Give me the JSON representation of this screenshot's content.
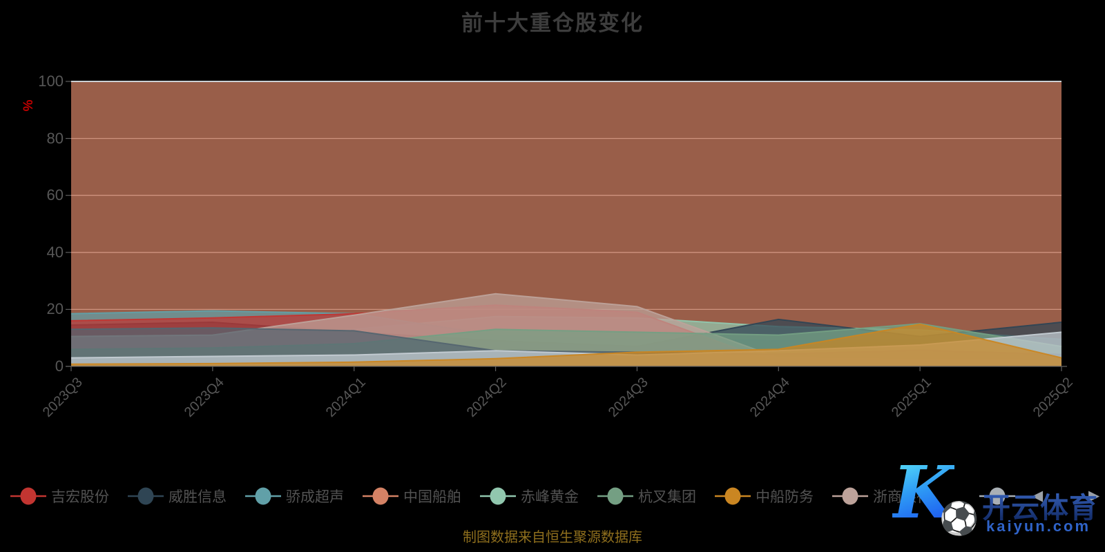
{
  "title": "前十大重仓股变化",
  "y_axis": {
    "name": "%",
    "labels": [
      "0",
      "20",
      "40",
      "60",
      "80",
      "100"
    ]
  },
  "x_axis": {
    "labels": [
      "2023Q3",
      "2023Q4",
      "2024Q1",
      "2024Q2",
      "2024Q3",
      "2024Q4",
      "2025Q1",
      "2025Q2"
    ]
  },
  "legend": {
    "items": [
      {
        "name": "吉宏股份",
        "color": "#c23531"
      },
      {
        "name": "威胜信息",
        "color": "#2f4554"
      },
      {
        "name": "骄成超声",
        "color": "#61a0a8"
      },
      {
        "name": "中国船舶",
        "color": "#d48265"
      },
      {
        "name": "赤峰黄金",
        "color": "#91c7ae"
      },
      {
        "name": "杭叉集团",
        "color": "#749f83"
      },
      {
        "name": "中船防务",
        "color": "#ca8622"
      },
      {
        "name": "浙商银行",
        "color": "#bda29a"
      },
      {
        "name": "",
        "color": "#a9afb5"
      }
    ],
    "prev_arrow": "◀",
    "next_arrow": "▶"
  },
  "footer": "制图数据来自恒生聚源数据库",
  "watermark": {
    "letter": "K",
    "ball": "⚽",
    "brand": "开云体育",
    "domain": "kaiyun.com"
  },
  "colors": {
    "background": "#000000",
    "title_text": "#3d3d3d",
    "axis_label": "#575757",
    "axis_line": "#5f5f5f",
    "gridline": "#e0e0e0",
    "top_boundary_line": "#ccd0d4",
    "percent_label": "#c40000",
    "footer_text": "#8f6f1d"
  },
  "chart_data": {
    "type": "area",
    "stacked": false,
    "unit": "%",
    "title": "前十大重仓股变化",
    "categories": [
      "2023Q3",
      "2023Q4",
      "2024Q1",
      "2024Q2",
      "2024Q3",
      "2024Q4",
      "2025Q1",
      "2025Q2"
    ],
    "ylim": [
      0,
      100
    ],
    "gridlines": [
      20,
      40,
      60,
      80,
      100
    ],
    "legend_position": "bottom",
    "fill_opacity": 0.72,
    "series": [
      {
        "name": "吉宏股份",
        "color": "#c23531",
        "values": [
          16,
          17,
          18.5,
          21.5,
          19,
          1,
          1,
          1
        ]
      },
      {
        "name": "威胜信息",
        "color": "#2f4554",
        "values": [
          14.5,
          15.5,
          12,
          9,
          7,
          16.5,
          10.5,
          15.5
        ]
      },
      {
        "name": "骄成超声",
        "color": "#61a0a8",
        "values": [
          18.5,
          19.5,
          18.5,
          11,
          9.5,
          9,
          9,
          7
        ]
      },
      {
        "name": "中国船舶",
        "color": "#d48265",
        "values": [
          100,
          100,
          100,
          100,
          100,
          100,
          100,
          100
        ]
      },
      {
        "name": "赤峰黄金",
        "color": "#91c7ae",
        "values": [
          9,
          9.5,
          13,
          17.5,
          17,
          14,
          12.8,
          9.5
        ]
      },
      {
        "name": "杭叉集团",
        "color": "#749f83",
        "values": [
          6,
          6.5,
          8,
          13,
          12,
          11,
          15,
          7
        ]
      },
      {
        "name": "中船防务",
        "color": "#ca8622",
        "values": [
          0.8,
          1,
          1.5,
          2.7,
          5,
          6,
          14.8,
          3
        ]
      },
      {
        "name": "浙商银行",
        "color": "#bda29a",
        "values": [
          10.5,
          11,
          18,
          25.5,
          21,
          3,
          2.5,
          2
        ]
      },
      {
        "name": "",
        "color": "#546570",
        "values": [
          13,
          13.5,
          12.5,
          5.5,
          5,
          4.3,
          5.7,
          4.2
        ]
      },
      {
        "name": "",
        "color": "#c4ccd3",
        "values": [
          3,
          3.5,
          4,
          5.5,
          4,
          5.5,
          7.5,
          12
        ]
      }
    ],
    "top_boundary_line": 100
  }
}
